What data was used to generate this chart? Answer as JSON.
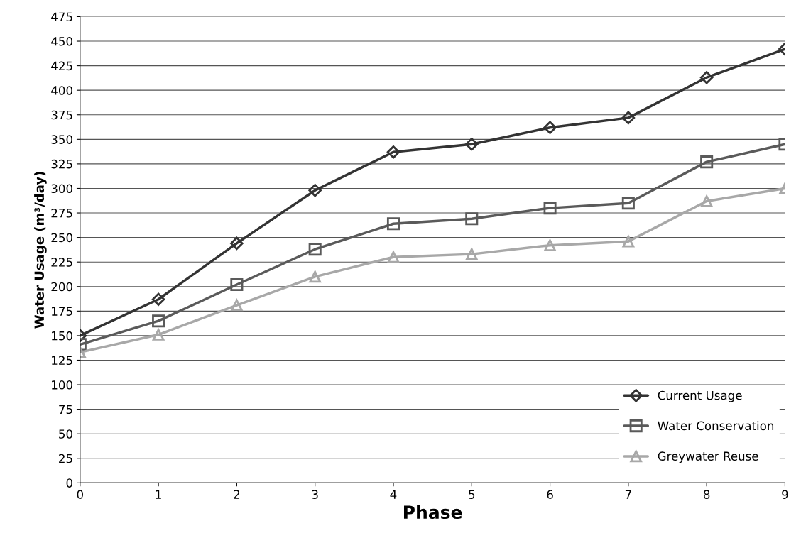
{
  "chart_data": {
    "type": "line",
    "xlabel": "Phase",
    "ylabel": "Water Usage (m³/day)",
    "x": [
      0,
      1,
      2,
      3,
      4,
      5,
      6,
      7,
      8,
      9
    ],
    "xlim": [
      0,
      9
    ],
    "xticks": [
      0,
      1,
      2,
      3,
      4,
      5,
      6,
      7,
      8,
      9
    ],
    "ylim": [
      0,
      475
    ],
    "yticks": [
      0,
      25,
      50,
      75,
      100,
      125,
      150,
      175,
      200,
      225,
      250,
      275,
      300,
      325,
      350,
      375,
      400,
      425,
      450,
      475
    ],
    "grid": "y",
    "legend": "bottom right",
    "line_style": "solid",
    "series": [
      {
        "name": "Current Usage",
        "color": "#333333",
        "marker": "diamond",
        "values": [
          150,
          187,
          244,
          298,
          337,
          345,
          362,
          372,
          413,
          442
        ]
      },
      {
        "name": "Water Conservation",
        "color": "#5a5a5a",
        "marker": "square",
        "values": [
          141,
          165,
          202,
          238,
          264,
          269,
          280,
          285,
          327,
          345
        ]
      },
      {
        "name": "Greywater Reuse",
        "color": "#a8a8a8",
        "marker": "triangle",
        "values": [
          133,
          151,
          181,
          210,
          230,
          233,
          242,
          246,
          287,
          300
        ]
      }
    ]
  }
}
